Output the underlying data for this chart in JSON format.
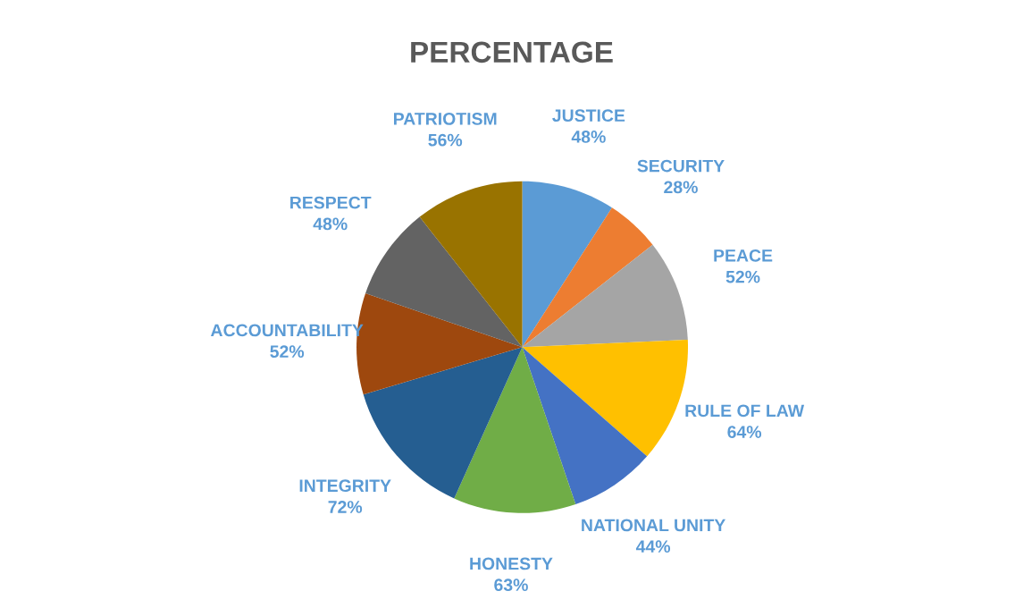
{
  "chart_data": {
    "type": "pie",
    "title": "PERCENTAGE",
    "categories": [
      "JUSTICE",
      "SECURITY",
      "PEACE",
      "RULE OF LAW",
      "NATIONAL UNITY",
      "HONESTY",
      "INTEGRITY",
      "ACCOUNTABILITY",
      "RESPECT",
      "PATRIOTISM"
    ],
    "values": [
      48,
      28,
      52,
      64,
      44,
      63,
      72,
      52,
      48,
      56
    ],
    "value_labels": [
      "48%",
      "28%",
      "52%",
      "64%",
      "44%",
      "63%",
      "72%",
      "52%",
      "48%",
      "56%"
    ],
    "colors": [
      "#5b9bd5",
      "#ed7d31",
      "#a5a5a5",
      "#ffc000",
      "#4472c4",
      "#70ad47",
      "#255e91",
      "#9e480e",
      "#636363",
      "#997300"
    ],
    "legend": false
  }
}
